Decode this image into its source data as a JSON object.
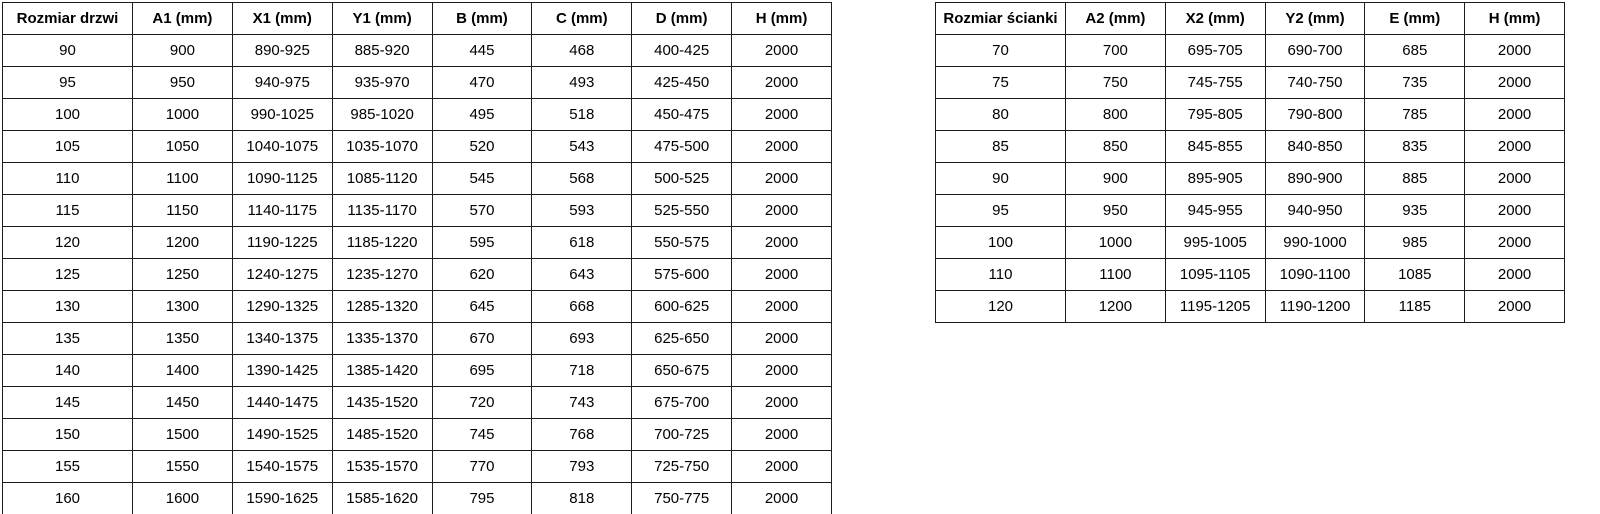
{
  "page": {
    "background": "#ffffff",
    "border_color": "#1c1c1c",
    "text_color": "#000000"
  },
  "tables": [
    {
      "name": "door-sizes",
      "headers": [
        "Rozmiar drzwi",
        "A1 (mm)",
        "X1 (mm)",
        "Y1 (mm)",
        "B (mm)",
        "C (mm)",
        "D (mm)",
        "H (mm)"
      ],
      "rows": [
        [
          "90",
          "900",
          "890-925",
          "885-920",
          "445",
          "468",
          "400-425",
          "2000"
        ],
        [
          "95",
          "950",
          "940-975",
          "935-970",
          "470",
          "493",
          "425-450",
          "2000"
        ],
        [
          "100",
          "1000",
          "990-1025",
          "985-1020",
          "495",
          "518",
          "450-475",
          "2000"
        ],
        [
          "105",
          "1050",
          "1040-1075",
          "1035-1070",
          "520",
          "543",
          "475-500",
          "2000"
        ],
        [
          "110",
          "1100",
          "1090-1125",
          "1085-1120",
          "545",
          "568",
          "500-525",
          "2000"
        ],
        [
          "115",
          "1150",
          "1140-1175",
          "1135-1170",
          "570",
          "593",
          "525-550",
          "2000"
        ],
        [
          "120",
          "1200",
          "1190-1225",
          "1185-1220",
          "595",
          "618",
          "550-575",
          "2000"
        ],
        [
          "125",
          "1250",
          "1240-1275",
          "1235-1270",
          "620",
          "643",
          "575-600",
          "2000"
        ],
        [
          "130",
          "1300",
          "1290-1325",
          "1285-1320",
          "645",
          "668",
          "600-625",
          "2000"
        ],
        [
          "135",
          "1350",
          "1340-1375",
          "1335-1370",
          "670",
          "693",
          "625-650",
          "2000"
        ],
        [
          "140",
          "1400",
          "1390-1425",
          "1385-1420",
          "695",
          "718",
          "650-675",
          "2000"
        ],
        [
          "145",
          "1450",
          "1440-1475",
          "1435-1520",
          "720",
          "743",
          "675-700",
          "2000"
        ],
        [
          "150",
          "1500",
          "1490-1525",
          "1485-1520",
          "745",
          "768",
          "700-725",
          "2000"
        ],
        [
          "155",
          "1550",
          "1540-1575",
          "1535-1570",
          "770",
          "793",
          "725-750",
          "2000"
        ],
        [
          "160",
          "1600",
          "1590-1625",
          "1585-1620",
          "795",
          "818",
          "750-775",
          "2000"
        ]
      ]
    },
    {
      "name": "wall-sizes",
      "headers": [
        "Rozmiar ścianki",
        "A2 (mm)",
        "X2 (mm)",
        "Y2 (mm)",
        "E (mm)",
        "H (mm)"
      ],
      "rows": [
        [
          "70",
          "700",
          "695-705",
          "690-700",
          "685",
          "2000"
        ],
        [
          "75",
          "750",
          "745-755",
          "740-750",
          "735",
          "2000"
        ],
        [
          "80",
          "800",
          "795-805",
          "790-800",
          "785",
          "2000"
        ],
        [
          "85",
          "850",
          "845-855",
          "840-850",
          "835",
          "2000"
        ],
        [
          "90",
          "900",
          "895-905",
          "890-900",
          "885",
          "2000"
        ],
        [
          "95",
          "950",
          "945-955",
          "940-950",
          "935",
          "2000"
        ],
        [
          "100",
          "1000",
          "995-1005",
          "990-1000",
          "985",
          "2000"
        ],
        [
          "110",
          "1100",
          "1095-1105",
          "1090-1100",
          "1085",
          "2000"
        ],
        [
          "120",
          "1200",
          "1195-1205",
          "1190-1200",
          "1185",
          "2000"
        ]
      ]
    }
  ]
}
